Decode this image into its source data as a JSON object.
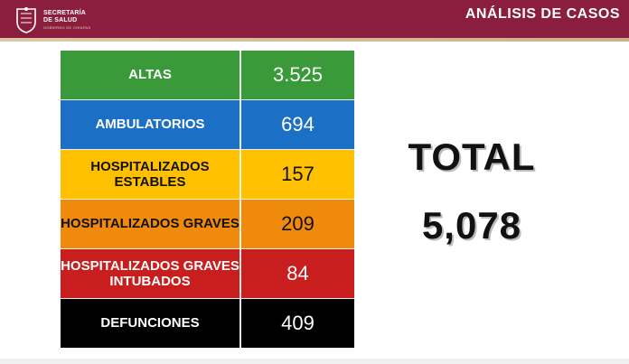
{
  "header": {
    "logo_line1": "SECRETARÍA",
    "logo_line2": "DE SALUD",
    "logo_line3": "GOBIERNO DE CHIAPAS",
    "title": "ANÁLISIS DE CASOS",
    "bar_color": "#8b1e3f"
  },
  "table": {
    "rows": [
      {
        "label": "ALTAS",
        "value": "3.525",
        "bg": "#3a9a3a",
        "text_color": "#ffffff"
      },
      {
        "label": "AMBULATORIOS",
        "value": "694",
        "bg": "#1b6fc4",
        "text_color": "#ffffff"
      },
      {
        "label": "HOSPITALIZADOS ESTABLES",
        "value": "157",
        "bg": "#ffc000",
        "text_color": "#111111"
      },
      {
        "label": "HOSPITALIZADOS GRAVES",
        "value": "209",
        "bg": "#f08a0c",
        "text_color": "#111111"
      },
      {
        "label": "HOSPITALIZADOS GRAVES INTUBADOS",
        "value": "84",
        "bg": "#c81e1e",
        "text_color": "#ffffff"
      },
      {
        "label": "DEFUNCIONES",
        "value": "409",
        "bg": "#000000",
        "text_color": "#ffffff"
      }
    ]
  },
  "total": {
    "label": "TOTAL",
    "value": "5,078"
  }
}
